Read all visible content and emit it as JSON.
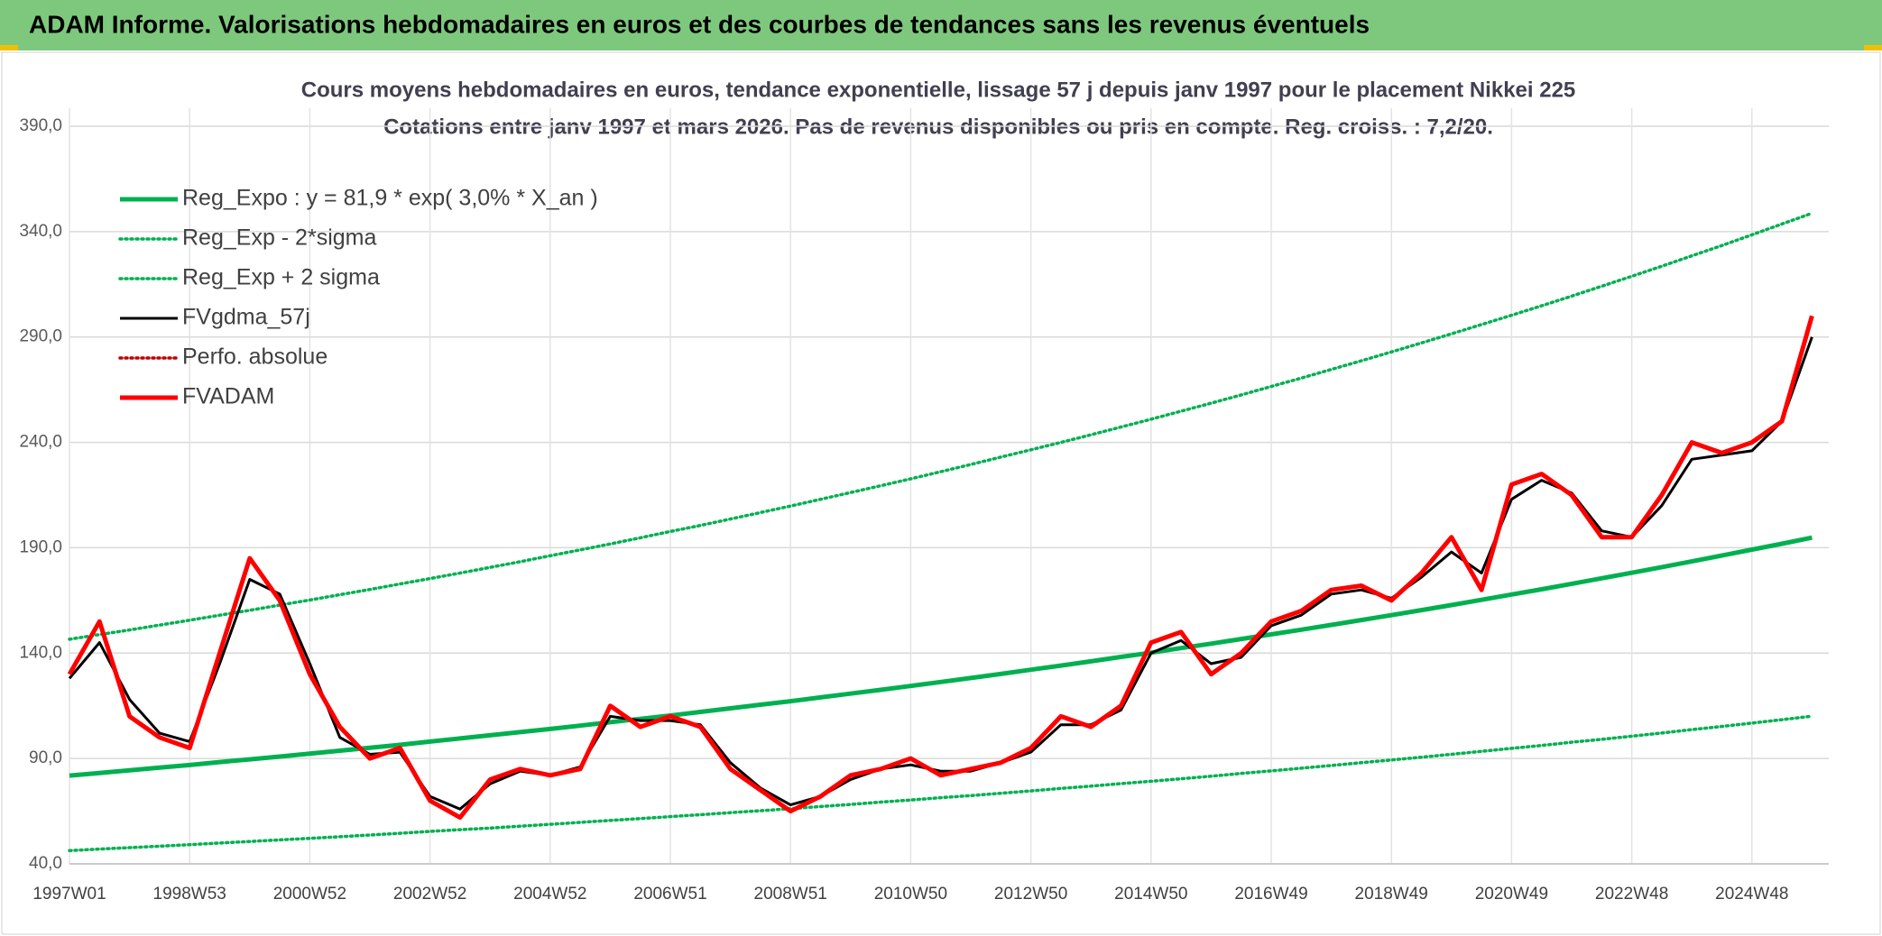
{
  "header": {
    "title": "ADAM Informe. Valorisations hebdomadaires en euros et des courbes de tendances sans les revenus éventuels"
  },
  "chart_data": {
    "type": "line",
    "title": "Cours moyens hebdomadaires en euros, tendance exponentielle, lissage 57 j depuis janv 1997 pour le placement Nikkei 225",
    "subtitle": "Cotations entre janv 1997 et mars 2026. Pas de revenus disponibles ou pris en compte. Reg. croiss. : 7,2/20.",
    "categories": [
      "1997W01",
      null,
      null,
      null,
      "1998W53",
      null,
      null,
      null,
      "2000W52",
      null,
      null,
      null,
      "2002W52",
      null,
      null,
      null,
      "2004W52",
      null,
      null,
      null,
      "2006W51",
      null,
      null,
      null,
      "2008W51",
      null,
      null,
      null,
      "2010W50",
      null,
      null,
      null,
      "2012W50",
      null,
      null,
      null,
      "2014W50",
      null,
      null,
      null,
      "2016W49",
      null,
      null,
      null,
      "2018W49",
      null,
      null,
      null,
      "2020W49",
      null,
      null,
      null,
      "2022W48",
      null,
      null,
      null,
      "2024W48",
      null,
      null
    ],
    "ylim": [
      40,
      390
    ],
    "yticks": [
      {
        "value": 40,
        "label": "40,0"
      },
      {
        "value": 90,
        "label": "90,0"
      },
      {
        "value": 140,
        "label": "140,0"
      },
      {
        "value": 190,
        "label": "190,0"
      },
      {
        "value": 240,
        "label": "240,0"
      },
      {
        "value": 290,
        "label": "290,0"
      },
      {
        "value": 340,
        "label": "340,0"
      },
      {
        "value": 390,
        "label": "390,0"
      }
    ],
    "grid": true,
    "legend": "top-left",
    "series": [
      {
        "name": "Reg_Expo : y = 81,9 * exp( 3,0% *  X_an )",
        "color": "#00b050",
        "style": "thick",
        "values": [
          81.9,
          83.1,
          84.4,
          85.7,
          86.9,
          88.3,
          89.6,
          90.9,
          92.3,
          93.7,
          95.1,
          96.5,
          98.0,
          99.5,
          101.0,
          102.5,
          104.0,
          105.6,
          107.2,
          108.8,
          110.4,
          112.1,
          113.8,
          115.5,
          117.2,
          119.0,
          120.8,
          122.6,
          124.4,
          126.3,
          128.2,
          130.1,
          132.1,
          134.1,
          136.1,
          138.2,
          140.2,
          142.4,
          144.5,
          146.7,
          148.9,
          151.1,
          153.4,
          155.7,
          158.0,
          160.4,
          162.8,
          165.3,
          167.8,
          170.3,
          172.9,
          175.5,
          178.1,
          180.8,
          183.5,
          186.3,
          189.1,
          191.9,
          194.8
        ]
      },
      {
        "name": "Reg_Exp - 2*sigma",
        "color": "#00b050",
        "style": "dotted",
        "values": [
          46.3,
          47.0,
          47.7,
          48.4,
          49.1,
          49.9,
          50.6,
          51.4,
          52.1,
          52.9,
          53.7,
          54.5,
          55.4,
          56.2,
          57.0,
          57.9,
          58.8,
          59.7,
          60.6,
          61.5,
          62.4,
          63.3,
          64.3,
          65.2,
          66.2,
          67.2,
          68.2,
          69.3,
          70.3,
          71.4,
          72.4,
          73.5,
          74.6,
          75.8,
          76.9,
          78.1,
          79.2,
          80.4,
          81.6,
          82.9,
          84.1,
          85.4,
          86.7,
          88.0,
          89.3,
          90.6,
          92.0,
          93.4,
          94.8,
          96.2,
          97.7,
          99.1,
          100.6,
          102.1,
          103.7,
          105.2,
          106.8,
          108.4,
          110.1
        ]
      },
      {
        "name": "Reg_Exp + 2 sigma",
        "color": "#00b050",
        "style": "dotted",
        "values": [
          146.6,
          148.8,
          151.0,
          153.3,
          155.6,
          158.0,
          160.3,
          162.8,
          165.2,
          167.7,
          170.2,
          172.8,
          175.4,
          178.0,
          180.7,
          183.4,
          186.2,
          189.0,
          191.8,
          194.7,
          197.7,
          200.6,
          203.6,
          206.7,
          209.8,
          213.0,
          216.2,
          219.4,
          222.7,
          226.1,
          229.5,
          233.0,
          236.5,
          240.0,
          243.6,
          247.3,
          251.0,
          254.8,
          258.6,
          262.5,
          266.5,
          270.5,
          274.6,
          278.7,
          282.9,
          287.2,
          291.5,
          295.9,
          300.3,
          304.8,
          309.4,
          314.1,
          318.8,
          323.6,
          328.5,
          333.4,
          338.5,
          343.6,
          348.7
        ]
      },
      {
        "name": "FVgdma_57j",
        "color": "#000000",
        "style": "solid",
        "values": [
          128,
          145,
          118,
          102,
          98,
          135,
          175,
          168,
          135,
          100,
          92,
          93,
          72,
          66,
          78,
          84,
          82,
          86,
          110,
          108,
          108,
          106,
          88,
          76,
          68,
          72,
          80,
          85,
          87,
          84,
          84,
          88,
          93,
          106,
          106,
          113,
          140,
          146,
          135,
          138,
          153,
          158,
          168,
          170,
          166,
          176,
          188,
          178,
          213,
          222,
          216,
          198,
          195,
          210,
          232,
          234,
          236,
          250,
          290
        ]
      },
      {
        "name": "Perfo. absolue",
        "color": "#c00000",
        "style": "dotted",
        "values": [
          null,
          null,
          null,
          null,
          null,
          null,
          null,
          null,
          null,
          null,
          null,
          null,
          null,
          null,
          null,
          null,
          null,
          null,
          null,
          null,
          null,
          null,
          null,
          null,
          null,
          null,
          null,
          null,
          null,
          null,
          null,
          null,
          null,
          null,
          null,
          null,
          null,
          null,
          null,
          null,
          null,
          null,
          null,
          null,
          null,
          null,
          null,
          null,
          null,
          null,
          null,
          null,
          null,
          null,
          null,
          null,
          null,
          null,
          null
        ]
      },
      {
        "name": "FVADAM",
        "color": "#ff0000",
        "style": "thick",
        "values": [
          130,
          155,
          110,
          100,
          95,
          140,
          185,
          165,
          130,
          105,
          90,
          95,
          70,
          62,
          80,
          85,
          82,
          85,
          115,
          105,
          110,
          105,
          85,
          75,
          65,
          72,
          82,
          85,
          90,
          82,
          85,
          88,
          95,
          110,
          105,
          115,
          145,
          150,
          130,
          140,
          155,
          160,
          170,
          172,
          165,
          178,
          195,
          170,
          220,
          225,
          215,
          195,
          195,
          215,
          240,
          235,
          240,
          250,
          300
        ]
      }
    ]
  }
}
